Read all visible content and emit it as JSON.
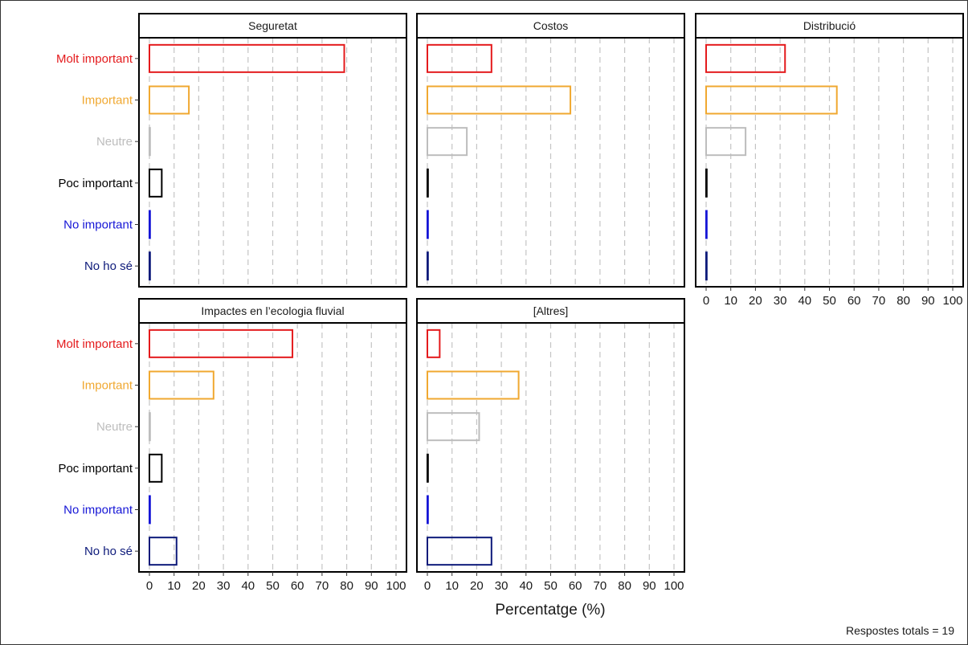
{
  "chart_data": {
    "type": "bar",
    "orientation": "horizontal",
    "faceted": true,
    "categories": [
      "Molt important",
      "Important",
      "Neutre",
      "Poc important",
      "No important",
      "No ho sé"
    ],
    "category_colors": [
      "#e41a1c",
      "#f0a830",
      "#bdbdbd",
      "#000000",
      "#1515d6",
      "#0d1a7a"
    ],
    "xlim": [
      0,
      100
    ],
    "x_ticks": [
      0,
      10,
      20,
      30,
      40,
      50,
      60,
      70,
      80,
      90,
      100
    ],
    "xlabel": "Percentatge (%)",
    "grid": "vertical dashed",
    "caption": "Respostes totals = 19",
    "panels": [
      {
        "title": "Seguretat",
        "values": [
          79,
          16,
          0,
          5,
          0,
          0
        ]
      },
      {
        "title": "Costos",
        "values": [
          26,
          58,
          16,
          0,
          0,
          0
        ]
      },
      {
        "title": "Distribució",
        "values": [
          32,
          53,
          16,
          0,
          0,
          0
        ]
      },
      {
        "title": "Impactes en l’ecologia fluvial",
        "values": [
          58,
          26,
          0,
          5,
          0,
          11
        ]
      },
      {
        "title": "[Altres]",
        "values": [
          5,
          37,
          21,
          0,
          0,
          26
        ]
      }
    ]
  }
}
